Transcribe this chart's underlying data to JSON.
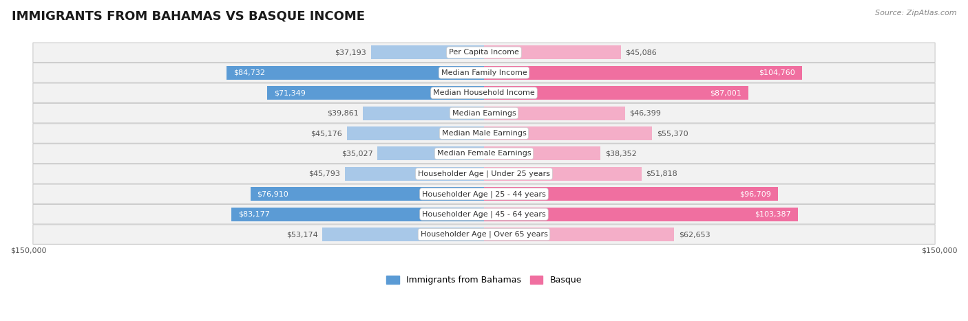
{
  "title": "IMMIGRANTS FROM BAHAMAS VS BASQUE INCOME",
  "source": "Source: ZipAtlas.com",
  "categories": [
    "Per Capita Income",
    "Median Family Income",
    "Median Household Income",
    "Median Earnings",
    "Median Male Earnings",
    "Median Female Earnings",
    "Householder Age | Under 25 years",
    "Householder Age | 25 - 44 years",
    "Householder Age | 45 - 64 years",
    "Householder Age | Over 65 years"
  ],
  "bahamas_values": [
    37193,
    84732,
    71349,
    39861,
    45176,
    35027,
    45793,
    76910,
    83177,
    53174
  ],
  "basque_values": [
    45086,
    104760,
    87001,
    46399,
    55370,
    38352,
    51818,
    96709,
    103387,
    62653
  ],
  "bahamas_color_light": "#a8c8e8",
  "bahamas_color_dark": "#5b9bd5",
  "basque_color_light": "#f4aec8",
  "basque_color_dark": "#f06fa0",
  "max_value": 150000,
  "dark_threshold": 70000,
  "background_color": "#ffffff",
  "row_bg_color": "#f2f2f2",
  "row_border_color": "#cccccc",
  "title_fontsize": 13,
  "label_fontsize": 8,
  "value_fontsize": 8,
  "legend_fontsize": 9,
  "source_fontsize": 8
}
